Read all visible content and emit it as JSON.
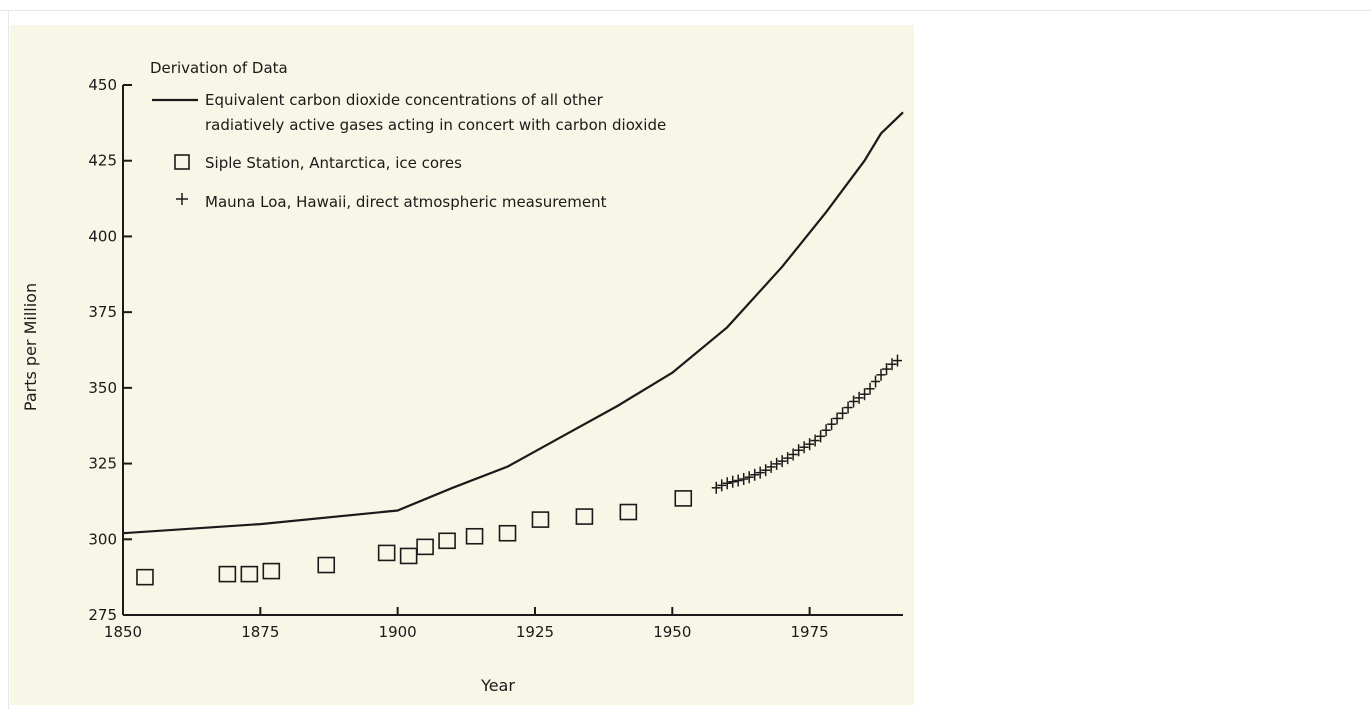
{
  "chart_data": {
    "type": "line",
    "title": "",
    "xlabel": "Year",
    "ylabel": "Parts per Million",
    "xlim": [
      1850,
      1992
    ],
    "ylim": [
      275,
      450
    ],
    "x_ticks": [
      1850,
      1875,
      1900,
      1925,
      1950,
      1975
    ],
    "y_ticks": [
      275,
      300,
      325,
      350,
      375,
      400,
      425,
      450
    ],
    "grid": false,
    "legend": {
      "heading": "Derivation of Data",
      "placement": "top-left",
      "entries": [
        {
          "marker": "line",
          "text_lines": [
            "Equivalent carbon dioxide concentrations of all other",
            "radiatively active gases acting in concert with carbon dioxide"
          ]
        },
        {
          "marker": "square",
          "text_lines": [
            "Siple Station, Antarctica, ice cores"
          ]
        },
        {
          "marker": "plus",
          "text_lines": [
            "Mauna Loa, Hawaii, direct atmospheric measurement"
          ]
        }
      ]
    },
    "series": [
      {
        "name": "Equivalent carbon dioxide concentrations of all other radiatively active gases acting in concert with carbon dioxide",
        "style": "line",
        "x": [
          1850,
          1875,
          1900,
          1910,
          1920,
          1930,
          1940,
          1950,
          1960,
          1970,
          1978,
          1985,
          1988,
          1992
        ],
        "y": [
          302,
          305,
          309.5,
          317,
          324,
          334,
          344,
          355,
          370,
          390,
          408,
          425,
          434,
          441
        ]
      },
      {
        "name": "Siple Station, Antarctica, ice cores",
        "style": "square",
        "x": [
          1854,
          1869,
          1873,
          1877,
          1887,
          1898,
          1902,
          1905,
          1909,
          1914,
          1920,
          1926,
          1934,
          1942,
          1952
        ],
        "y": [
          287.5,
          288.5,
          288.5,
          289.5,
          291.5,
          295.5,
          294.5,
          297.5,
          299.5,
          301,
          302,
          306.5,
          307.5,
          309,
          313.5
        ]
      },
      {
        "name": "Mauna Loa, Hawaii, direct atmospheric measurement",
        "style": "plus",
        "x": [
          1958,
          1959,
          1960,
          1961,
          1962,
          1963,
          1964,
          1965,
          1966,
          1967,
          1968,
          1969,
          1970,
          1971,
          1972,
          1973,
          1974,
          1975,
          1976,
          1977,
          1978,
          1979,
          1980,
          1981,
          1982,
          1983,
          1984,
          1985,
          1986,
          1987,
          1988,
          1989,
          1990,
          1991
        ],
        "y": [
          317,
          317.8,
          318.5,
          319,
          319.4,
          319.9,
          320.5,
          321.3,
          322,
          322.8,
          323.9,
          324.9,
          325.8,
          326.8,
          328,
          329.4,
          330.4,
          331.4,
          332.6,
          334,
          336,
          338,
          339.9,
          341.6,
          343.5,
          345.5,
          346.7,
          347.9,
          349.7,
          352.1,
          354.3,
          356.2,
          357.8,
          359
        ]
      }
    ]
  }
}
